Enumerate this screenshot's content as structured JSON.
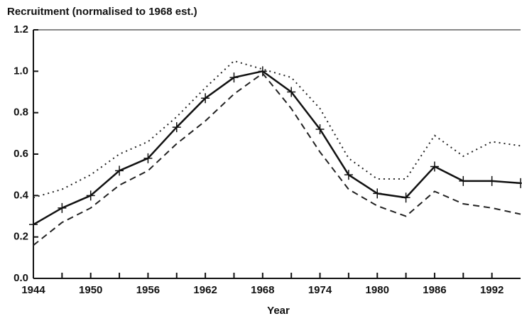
{
  "chart_data": {
    "type": "line",
    "title": "Recruitment (normalised to 1968 est.)",
    "xlabel": "Year",
    "x": [
      1944,
      1947,
      1950,
      1953,
      1956,
      1959,
      1962,
      1965,
      1968,
      1971,
      1974,
      1977,
      1980,
      1983,
      1986,
      1989,
      1992,
      1995
    ],
    "series": [
      {
        "color": "#111111",
        "style": "solid",
        "marker": "plus",
        "values": [
          0.26,
          0.34,
          0.4,
          0.52,
          0.58,
          0.73,
          0.87,
          0.97,
          1.0,
          0.9,
          0.72,
          0.5,
          0.41,
          0.39,
          0.54,
          0.47,
          0.47,
          0.46
        ]
      },
      {
        "color": "#222222",
        "style": "dotted",
        "values": [
          0.39,
          0.43,
          0.5,
          0.6,
          0.66,
          0.78,
          0.92,
          1.05,
          1.01,
          0.97,
          0.82,
          0.58,
          0.48,
          0.48,
          0.69,
          0.59,
          0.66,
          0.64
        ]
      },
      {
        "color": "#222222",
        "style": "dashed",
        "values": [
          0.16,
          0.27,
          0.34,
          0.45,
          0.52,
          0.65,
          0.76,
          0.89,
          0.99,
          0.82,
          0.61,
          0.43,
          0.35,
          0.3,
          0.42,
          0.36,
          0.34,
          0.31
        ]
      }
    ],
    "xlim": [
      1944,
      1995
    ],
    "xticks": [
      1944,
      1950,
      1956,
      1962,
      1968,
      1974,
      1980,
      1986,
      1992
    ],
    "xticks_minor": [
      1947,
      1953,
      1959,
      1965,
      1971,
      1977,
      1983,
      1989
    ],
    "ylim": [
      0,
      1.2
    ],
    "yticks": [
      {
        "value": 0,
        "label": "0.0"
      },
      0.2,
      0.4,
      0.6,
      0.8,
      {
        "value": 1,
        "label": "1.0"
      },
      1.2
    ]
  }
}
